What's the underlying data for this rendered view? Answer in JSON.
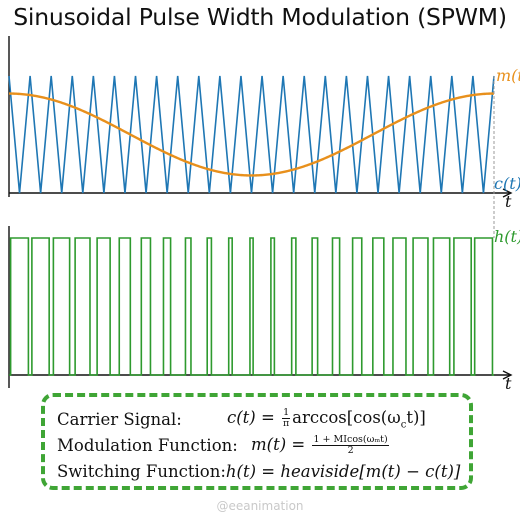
{
  "title": "Sinusoidal Pulse Width Modulation (SPWM)",
  "top_plot": {
    "x_label": "t",
    "modulation_label": "m(t)",
    "carrier_label": "c(t)",
    "modulation_color": "#e8901c",
    "carrier_color": "#1f77b4"
  },
  "bottom_plot": {
    "x_label": "t",
    "switching_label": "h(t)",
    "switching_color": "#2e9a2e"
  },
  "chart_data": {
    "type": "line",
    "carrier_periods": 23,
    "modulation_index": 0.7,
    "series": [
      {
        "name": "m(t)",
        "formula": "(1 + MI·cos(ω_m t)) / 2"
      },
      {
        "name": "c(t)",
        "formula": "(1/π)·arccos[cos(ω_c t)]"
      },
      {
        "name": "h(t)",
        "formula": "heaviside[m(t) − c(t)]"
      }
    ]
  },
  "formulas": [
    {
      "name": "Carrier Signal:",
      "lhs": "c(t) = ",
      "frac_num": "1",
      "frac_den": "π",
      "rhs": "arccos[cos(ω",
      "sub": "c",
      "tail": "t)]"
    },
    {
      "name": "Modulation Function:",
      "lhs": "m(t) = ",
      "frac_num": "1 + MIcos(ωₘt)",
      "frac_den": "2",
      "rhs": "",
      "sub": "",
      "tail": ""
    },
    {
      "name": "Switching Function:",
      "lhs": "h(t) = ",
      "frac_num": "",
      "frac_den": "",
      "rhs": "heaviside[m(t) − c(t)]",
      "sub": "",
      "tail": ""
    }
  ],
  "watermark": "@eeanimation"
}
